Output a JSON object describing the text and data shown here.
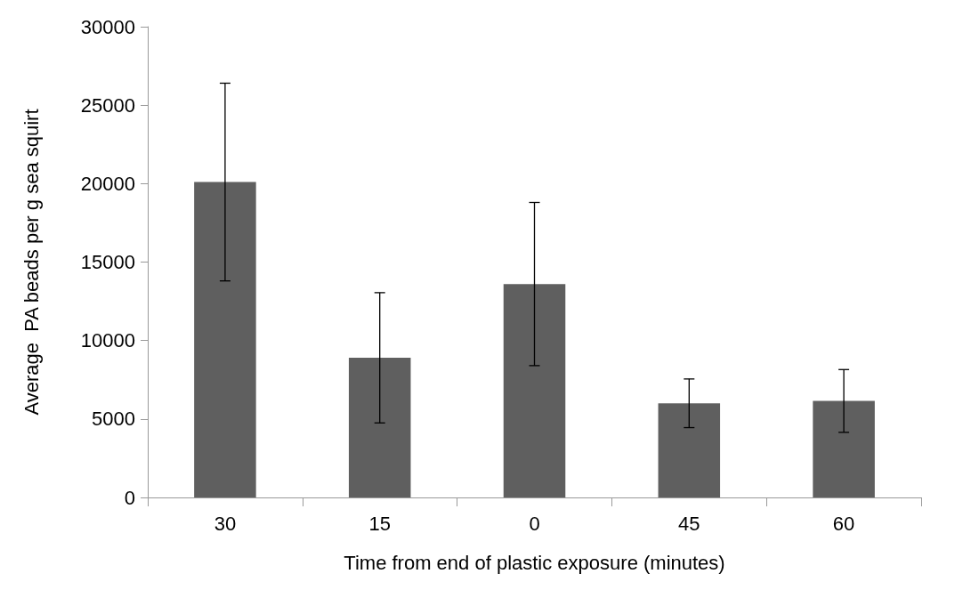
{
  "chart_data": {
    "type": "bar",
    "xlabel": "Time from end of plastic exposure (minutes)",
    "ylabel": "Average  PA beads per g sea squirt",
    "categories": [
      "30",
      "15",
      "0",
      "45",
      "60"
    ],
    "values": [
      20100,
      8900,
      13600,
      6000,
      6150
    ],
    "errors": [
      6300,
      4150,
      5200,
      1550,
      2000
    ],
    "color": "#5f5f5f",
    "ylim": [
      0,
      30000
    ],
    "yticks": [
      0,
      5000,
      10000,
      15000,
      20000,
      25000,
      30000
    ],
    "grid": false
  }
}
